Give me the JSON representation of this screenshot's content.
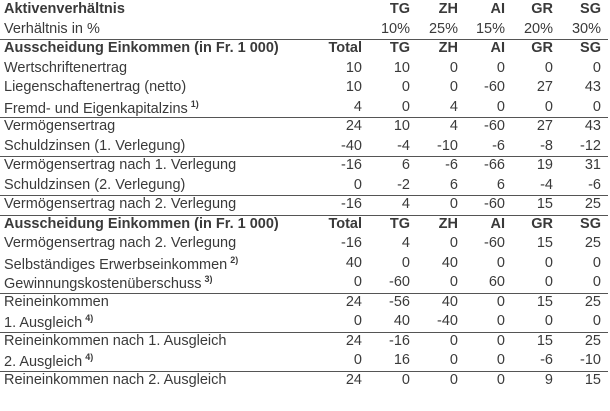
{
  "aktiven": {
    "title": "Aktivenverhältnis",
    "columns": [
      "TG",
      "ZH",
      "AI",
      "GR",
      "SG"
    ]
  },
  "verhaeltnis": {
    "label": "Verhältnis in %",
    "values": [
      "10%",
      "25%",
      "15%",
      "20%",
      "30%"
    ],
    "rule": true
  },
  "sections": [
    {
      "header": {
        "title": "Ausscheidung Einkommen (in Fr. 1 000)",
        "columns": [
          "Total",
          "TG",
          "ZH",
          "AI",
          "GR",
          "SG"
        ]
      },
      "rows": [
        {
          "label": "Wertschriftenertrag",
          "values": [
            10,
            10,
            0,
            0,
            0,
            0
          ]
        },
        {
          "label": "Liegenschaftenertrag (netto)",
          "values": [
            10,
            0,
            0,
            -60,
            27,
            43
          ]
        },
        {
          "label": "Fremd- und Eigenkapitalzins",
          "sup": "1)",
          "values": [
            4,
            0,
            4,
            0,
            0,
            0
          ],
          "rule": true
        },
        {
          "label": "Vermögensertrag",
          "values": [
            24,
            10,
            4,
            -60,
            27,
            43
          ]
        },
        {
          "label": "Schuldzinsen (1. Verlegung)",
          "values": [
            -40,
            -4,
            -10,
            -6,
            -8,
            -12
          ],
          "rule": true
        },
        {
          "label": "Vermögensertrag nach 1. Verlegung",
          "values": [
            -16,
            6,
            -6,
            -66,
            19,
            31
          ]
        },
        {
          "label": "Schuldzinsen (2. Verlegung)",
          "values": [
            0,
            -2,
            6,
            6,
            -4,
            -6
          ],
          "rule": true
        },
        {
          "label": "Vermögensertrag nach 2. Verlegung",
          "values": [
            -16,
            4,
            0,
            -60,
            15,
            25
          ],
          "rule": true
        }
      ]
    },
    {
      "header": {
        "title": "Ausscheidung Einkommen (in Fr. 1 000)",
        "columns": [
          "Total",
          "TG",
          "ZH",
          "AI",
          "GR",
          "SG"
        ]
      },
      "rows": [
        {
          "label": "Vermögensertrag nach 2. Verlegung",
          "values": [
            -16,
            4,
            0,
            -60,
            15,
            25
          ]
        },
        {
          "label": "Selbständiges Erwerbseinkommen",
          "sup": "2)",
          "values": [
            40,
            0,
            40,
            0,
            0,
            0
          ]
        },
        {
          "label": "Gewinnungskostenüberschuss",
          "sup": "3)",
          "values": [
            0,
            -60,
            0,
            60,
            0,
            0
          ],
          "rule": true
        },
        {
          "label": "Reineinkommen",
          "values": [
            24,
            -56,
            40,
            0,
            15,
            25
          ]
        },
        {
          "label": "1. Ausgleich",
          "sup": "4)",
          "values": [
            0,
            40,
            -40,
            0,
            0,
            0
          ],
          "rule": true
        },
        {
          "label": "Reineinkommen nach 1. Ausgleich",
          "values": [
            24,
            -16,
            0,
            0,
            15,
            25
          ]
        },
        {
          "label": "2. Ausgleich",
          "sup": "4)",
          "values": [
            0,
            16,
            0,
            0,
            -6,
            -10
          ],
          "rule": true
        },
        {
          "label": "Reineinkommen nach 2. Ausgleich",
          "values": [
            24,
            0,
            0,
            0,
            9,
            15
          ]
        }
      ]
    }
  ]
}
